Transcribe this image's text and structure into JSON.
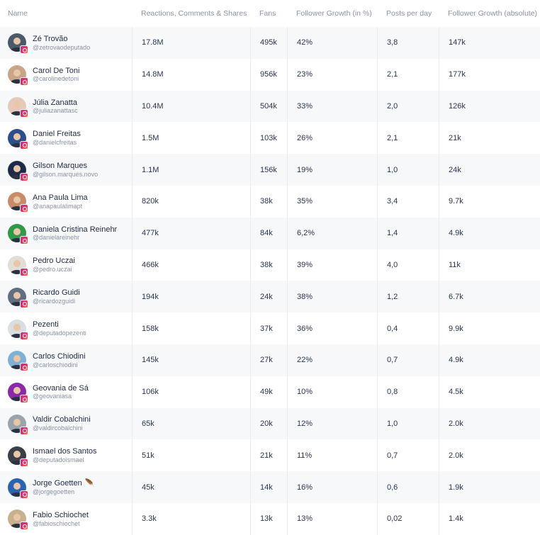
{
  "columns": {
    "name": "Name",
    "reactions": "Reactions, Comments & Shares",
    "fans": "Fans",
    "growth_pct": "Follower Growth (in %)",
    "posts": "Posts per day",
    "growth_abs": "Follower Growth (absolute)"
  },
  "rows": [
    {
      "name": "Zé Trovão",
      "handle": "@zetrovaodeputado",
      "reactions": "17.8M",
      "fans": "495k",
      "growth_pct": "42%",
      "posts": "3,8",
      "growth_abs": "147k",
      "avatar_color": "#4a5a6a"
    },
    {
      "name": "Carol De Toni",
      "handle": "@carolinedetoni",
      "reactions": "14.8M",
      "fans": "956k",
      "growth_pct": "23%",
      "posts": "2,1",
      "growth_abs": "177k",
      "avatar_color": "#c9a486"
    },
    {
      "name": "Júlia Zanatta",
      "handle": "@juliazanattasc",
      "reactions": "10.4M",
      "fans": "504k",
      "growth_pct": "33%",
      "posts": "2,0",
      "growth_abs": "126k",
      "avatar_color": "#e6c9b8"
    },
    {
      "name": "Daniel Freitas",
      "handle": "@danielcfreitas",
      "reactions": "1.5M",
      "fans": "103k",
      "growth_pct": "26%",
      "posts": "2,1",
      "growth_abs": "21k",
      "avatar_color": "#2c4f8c"
    },
    {
      "name": "Gilson Marques",
      "handle": "@gilson.marques.novo",
      "reactions": "1.1M",
      "fans": "156k",
      "growth_pct": "19%",
      "posts": "1,0",
      "growth_abs": "24k",
      "avatar_color": "#1e2b48"
    },
    {
      "name": "Ana Paula Lima",
      "handle": "@anapaulalimapt",
      "reactions": "820k",
      "fans": "38k",
      "growth_pct": "35%",
      "posts": "3,4",
      "growth_abs": "9.7k",
      "avatar_color": "#c98a6a"
    },
    {
      "name": "Daniela Cristina Reinehr",
      "handle": "@danielareinehr",
      "reactions": "477k",
      "fans": "84k",
      "growth_pct": "6,2%",
      "posts": "1,4",
      "growth_abs": "4.9k",
      "avatar_color": "#2f9a48"
    },
    {
      "name": "Pedro Uczai",
      "handle": "@pedro.uczai",
      "reactions": "466k",
      "fans": "38k",
      "growth_pct": "39%",
      "posts": "4,0",
      "growth_abs": "11k",
      "avatar_color": "#e2ddd6"
    },
    {
      "name": "Ricardo Guidi",
      "handle": "@ricardozguidi",
      "reactions": "194k",
      "fans": "24k",
      "growth_pct": "38%",
      "posts": "1,2",
      "growth_abs": "6.7k",
      "avatar_color": "#5f6f80"
    },
    {
      "name": "Pezenti",
      "handle": "@deputadopezenti",
      "reactions": "158k",
      "fans": "37k",
      "growth_pct": "36%",
      "posts": "0,4",
      "growth_abs": "9.9k",
      "avatar_color": "#d8dde2"
    },
    {
      "name": "Carlos Chiodini",
      "handle": "@carloschiodini",
      "reactions": "145k",
      "fans": "27k",
      "growth_pct": "22%",
      "posts": "0,7",
      "growth_abs": "4.9k",
      "avatar_color": "#7fb0d6"
    },
    {
      "name": "Geovania de Sá",
      "handle": "@geovaniasa",
      "reactions": "106k",
      "fans": "49k",
      "growth_pct": "10%",
      "posts": "0,8",
      "growth_abs": "4.5k",
      "avatar_color": "#8a2aa8"
    },
    {
      "name": "Valdir Cobalchini",
      "handle": "@valdircobalchini",
      "reactions": "65k",
      "fans": "20k",
      "growth_pct": "12%",
      "posts": "1,0",
      "growth_abs": "2.0k",
      "avatar_color": "#9aa4ad"
    },
    {
      "name": "Ismael dos Santos",
      "handle": "@deputadoismael",
      "reactions": "51k",
      "fans": "21k",
      "growth_pct": "11%",
      "posts": "0,7",
      "growth_abs": "2.0k",
      "avatar_color": "#3a3f48"
    },
    {
      "name": "Jorge Goetten",
      "handle": "@jorgegoetten",
      "reactions": "45k",
      "fans": "14k",
      "growth_pct": "16%",
      "posts": "0,6",
      "growth_abs": "1.9k",
      "avatar_color": "#2a64b0",
      "feather": "🪶"
    },
    {
      "name": "Fabio Schiochet",
      "handle": "@fabioschiochet",
      "reactions": "3.3k",
      "fans": "13k",
      "growth_pct": "13%",
      "posts": "0,02",
      "growth_abs": "1.4k",
      "avatar_color": "#c8b08e"
    }
  ]
}
